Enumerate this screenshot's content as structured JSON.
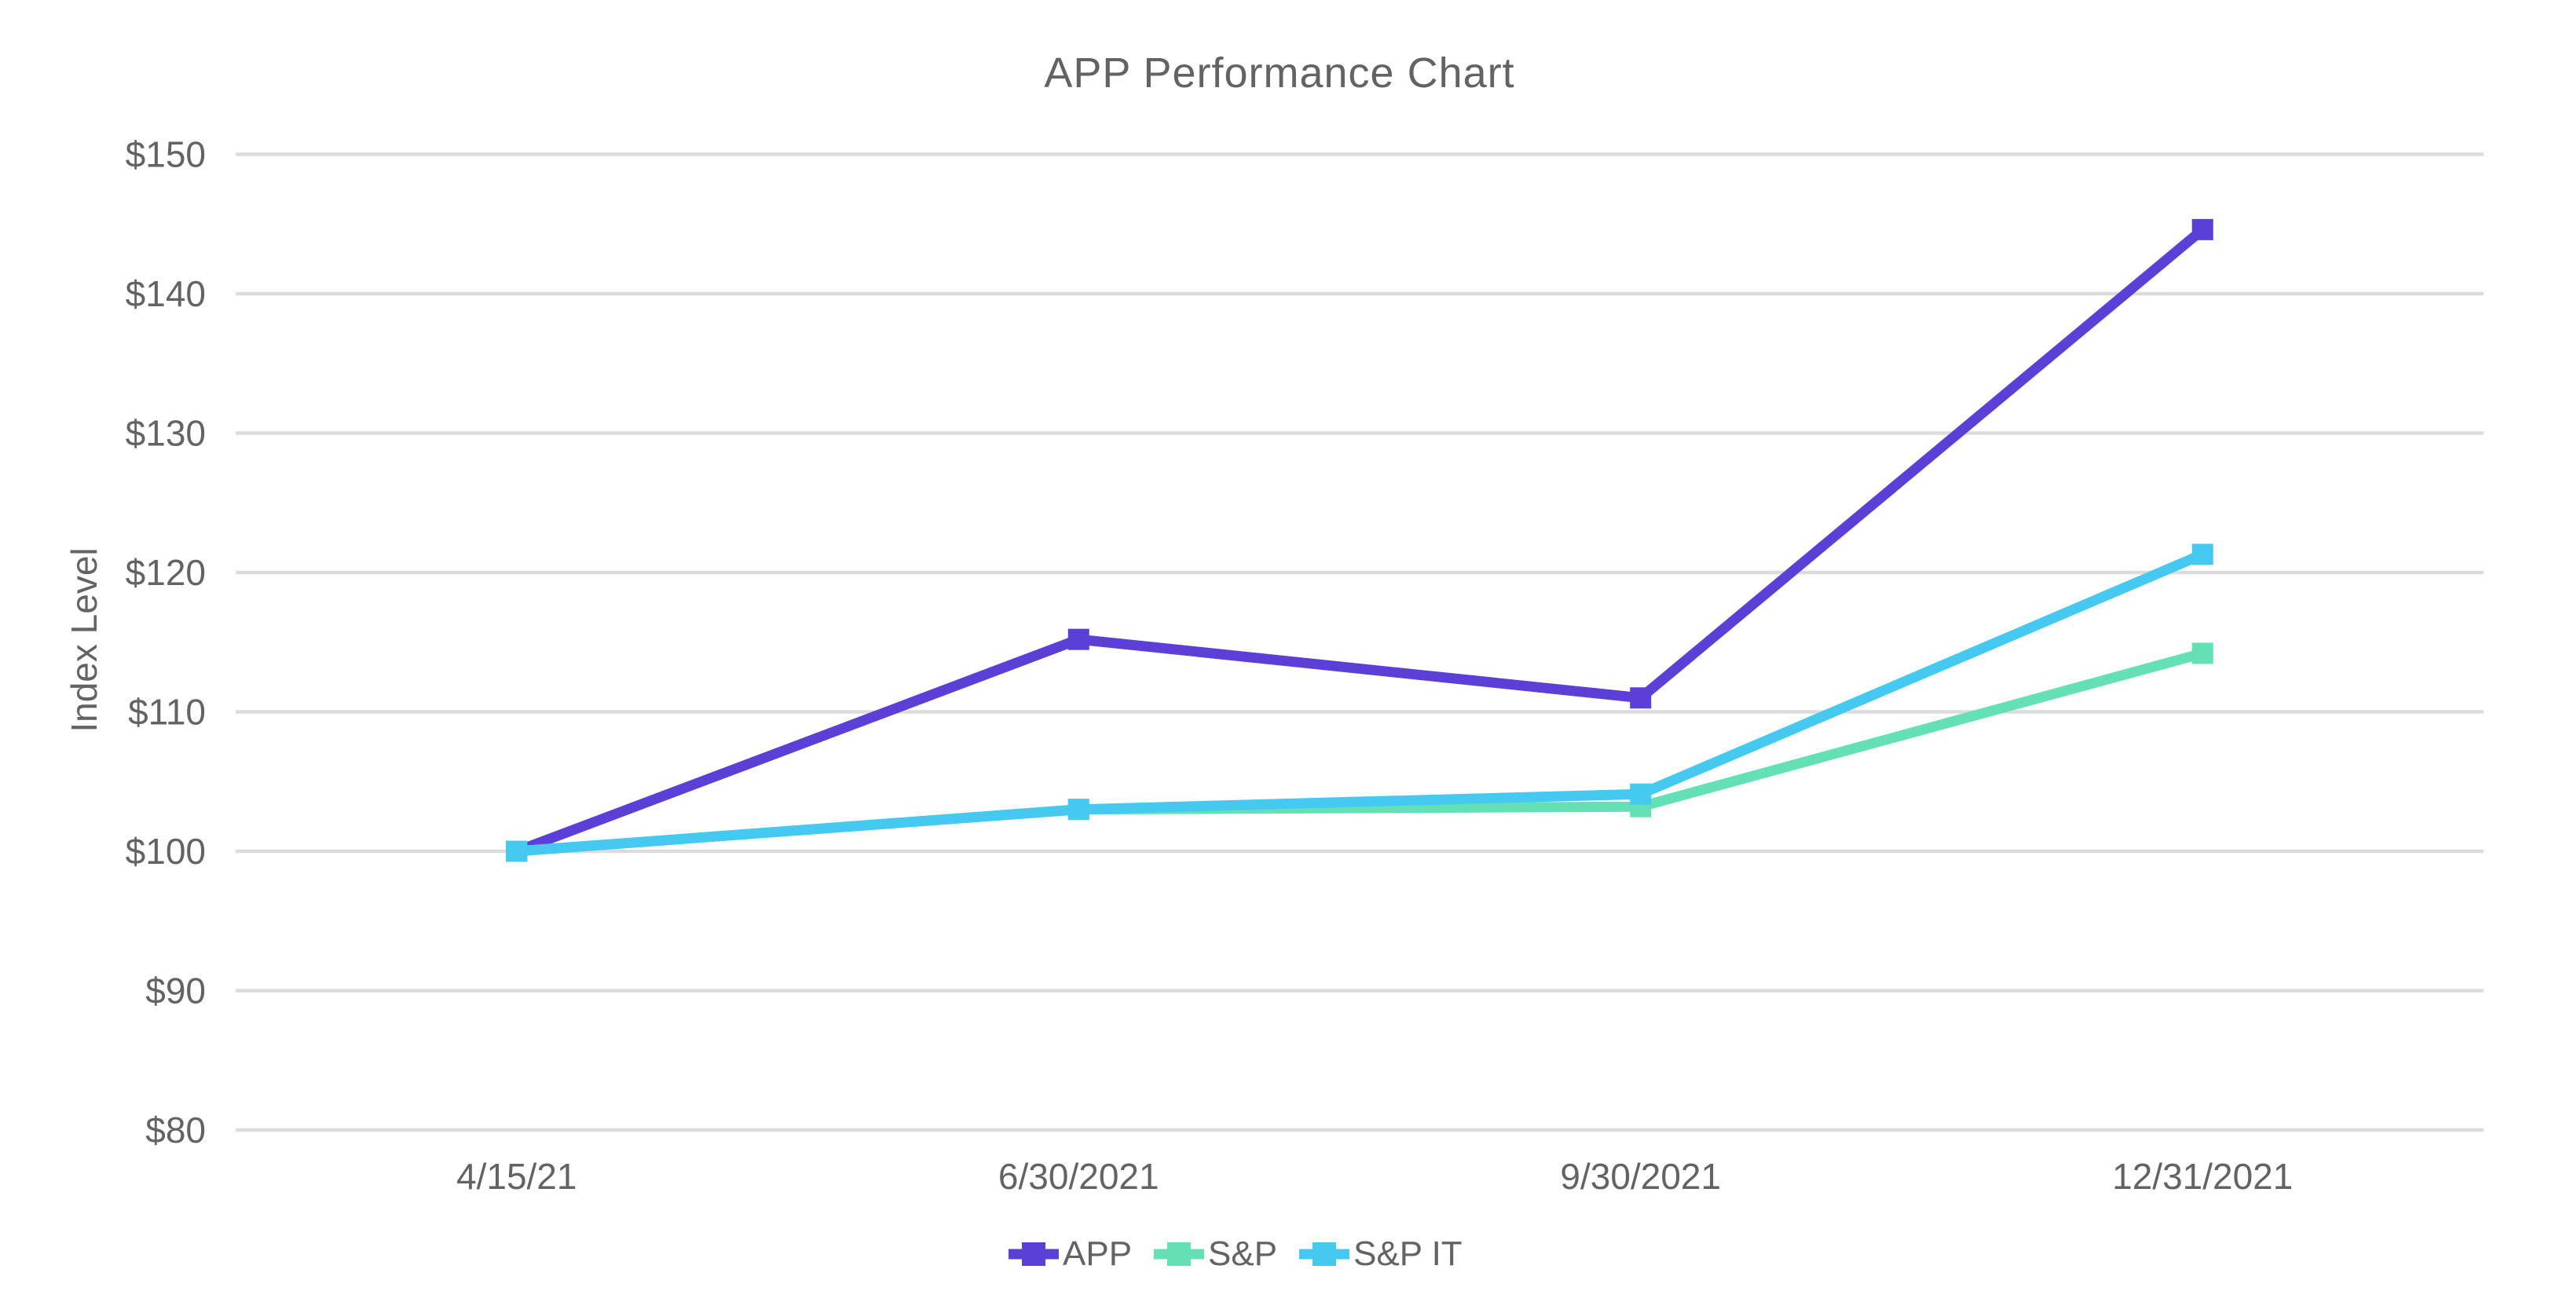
{
  "chart_data": {
    "type": "line",
    "title": "APP Performance Chart",
    "xlabel": "",
    "ylabel": "Index Level",
    "categories": [
      "4/15/21",
      "6/30/2021",
      "9/30/2021",
      "12/31/2021"
    ],
    "series": [
      {
        "name": "APP",
        "color": "#5b3fd6",
        "values": [
          100,
          115.2,
          111.0,
          144.6
        ]
      },
      {
        "name": "S&P",
        "color": "#63e0b4",
        "values": [
          100,
          103.0,
          103.2,
          114.2
        ]
      },
      {
        "name": "S&P IT",
        "color": "#45c9f0",
        "values": [
          100,
          103.0,
          104.1,
          121.3
        ]
      }
    ],
    "y_ticks": [
      {
        "value": 150,
        "label": "$150"
      },
      {
        "value": 140,
        "label": "$140"
      },
      {
        "value": 130,
        "label": "$130"
      },
      {
        "value": 120,
        "label": "$120"
      },
      {
        "value": 110,
        "label": "$110"
      },
      {
        "value": 100,
        "label": "$100"
      },
      {
        "value": 90,
        "label": "$90"
      },
      {
        "value": 80,
        "label": "$80"
      }
    ],
    "ylim": [
      80,
      150
    ],
    "grid": true,
    "marker": "square",
    "legend_position": "bottom",
    "colors": {
      "text": "#636363",
      "gridline": "#dcdcdc",
      "background": "#ffffff"
    }
  }
}
